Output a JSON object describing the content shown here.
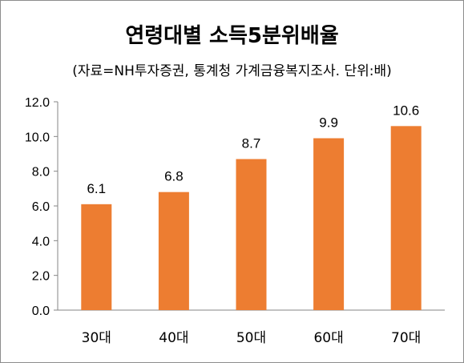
{
  "chart_data": {
    "type": "bar",
    "title": "연령대별 소득5분위배율",
    "subtitle": "(자료=NH투자증권, 통계청 가계금융복지조사. 단위:배)",
    "categories": [
      "30대",
      "40대",
      "50대",
      "60대",
      "70대"
    ],
    "values": [
      6.1,
      6.8,
      8.7,
      9.9,
      10.6
    ],
    "data_labels": [
      "6.1",
      "6.8",
      "8.7",
      "9.9",
      "10.6"
    ],
    "y_ticks": [
      "0.0",
      "2.0",
      "4.0",
      "6.0",
      "8.0",
      "10.0",
      "12.0"
    ],
    "ylim": [
      0,
      12
    ],
    "xlabel": "",
    "ylabel": "",
    "grid": false,
    "legend": "none",
    "bar_color": "#ed7d31"
  }
}
